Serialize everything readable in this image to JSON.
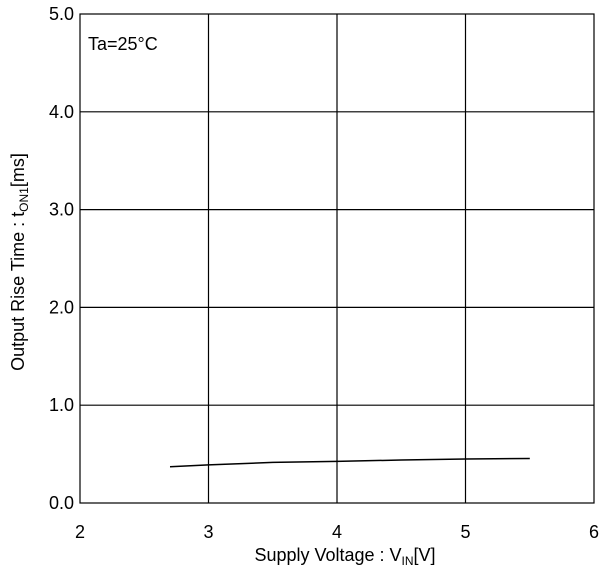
{
  "chart_data": {
    "type": "line",
    "annotation": "Ta=25°C",
    "xlabel": {
      "main": "Supply Voltage : V",
      "sub": "IN",
      "unit": "[V]"
    },
    "ylabel": {
      "main": "Output Rise Time : t",
      "sub": "ON1",
      "unit": "[ms]"
    },
    "xlim": [
      2,
      6
    ],
    "ylim": [
      0,
      5
    ],
    "x_ticks": [
      {
        "value": 2,
        "label": "2"
      },
      {
        "value": 3,
        "label": "3"
      },
      {
        "value": 4,
        "label": "4"
      },
      {
        "value": 5,
        "label": "5"
      },
      {
        "value": 6,
        "label": "6"
      }
    ],
    "y_ticks": [
      {
        "value": 0,
        "label": "0.0"
      },
      {
        "value": 1,
        "label": "1.0"
      },
      {
        "value": 2,
        "label": "2.0"
      },
      {
        "value": 3,
        "label": "3.0"
      },
      {
        "value": 4,
        "label": "4.0"
      },
      {
        "value": 5,
        "label": "5.0"
      }
    ],
    "grid": true,
    "series": [
      {
        "color": "#000000",
        "points": [
          {
            "x": 2.7,
            "y": 0.37
          },
          {
            "x": 3.0,
            "y": 0.39
          },
          {
            "x": 3.5,
            "y": 0.415
          },
          {
            "x": 4.0,
            "y": 0.425
          },
          {
            "x": 4.5,
            "y": 0.44
          },
          {
            "x": 5.0,
            "y": 0.45
          },
          {
            "x": 5.5,
            "y": 0.455
          }
        ]
      }
    ]
  }
}
